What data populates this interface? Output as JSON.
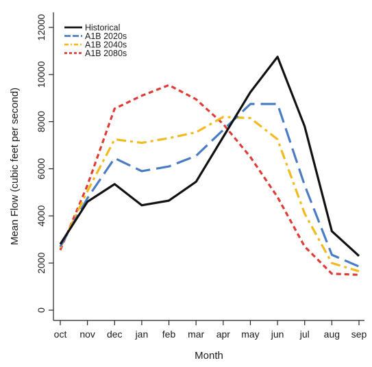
{
  "chart_data": {
    "type": "line",
    "xlabel": "Month",
    "ylabel": "Mean Flow (cubic feet per second)",
    "categories": [
      "oct",
      "nov",
      "dec",
      "jan",
      "feb",
      "mar",
      "apr",
      "may",
      "jun",
      "jul",
      "aug",
      "sep"
    ],
    "yticks": [
      0,
      2000,
      4000,
      6000,
      8000,
      10000,
      12000
    ],
    "ylim": [
      0,
      12000
    ],
    "grid": false,
    "legend_position": "top-left",
    "series": [
      {
        "name": "Historical",
        "color": "#111111",
        "dash": "solid",
        "values": [
          2800,
          4600,
          5350,
          4450,
          4650,
          5450,
          7350,
          9250,
          10750,
          7800,
          3350,
          2300
        ]
      },
      {
        "name": "A1B 2020s",
        "color": "#4a7cc4",
        "dash": "long-dash",
        "values": [
          2700,
          4750,
          6450,
          5900,
          6100,
          6550,
          7650,
          8750,
          8750,
          5300,
          2350,
          1850
        ]
      },
      {
        "name": "A1B 2040s",
        "color": "#f2ba1e",
        "dash": "dash-dot",
        "values": [
          2650,
          5050,
          7250,
          7100,
          7300,
          7550,
          8200,
          8150,
          7250,
          4100,
          2000,
          1650
        ]
      },
      {
        "name": "A1B 2080s",
        "color": "#e03c37",
        "dash": "short-dash",
        "values": [
          2550,
          5300,
          8550,
          9100,
          9550,
          8950,
          7900,
          6500,
          4800,
          2700,
          1550,
          1500
        ]
      }
    ]
  }
}
